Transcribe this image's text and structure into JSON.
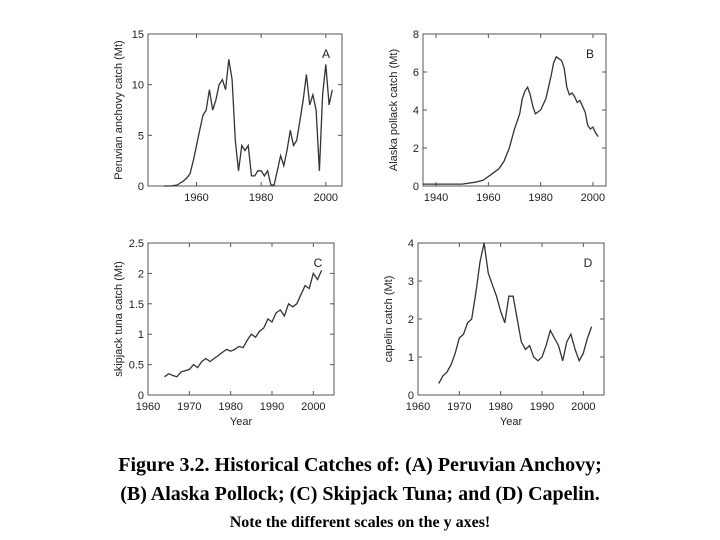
{
  "caption": {
    "line1": "Figure 3.2. Historical Catches of:  (A) Peruvian Anchovy;",
    "line2": "(B) Alaska Pollock; (C) Skipjack Tuna; and (D) Capelin.",
    "line3": "Note the different scales on the y axes!"
  },
  "colors": {
    "line": "#333333",
    "axis": "#555555",
    "text": "#222222"
  },
  "chart_data": [
    {
      "type": "line",
      "panel_label": "A",
      "ylabel": "Peruvian anchovy catch (Mt)",
      "xlabel": "",
      "xlim": [
        1945,
        2005
      ],
      "ylim": [
        0,
        15
      ],
      "xticks": [
        1960,
        1980,
        2000
      ],
      "yticks": [
        0,
        5,
        10,
        15
      ],
      "x": [
        1950,
        1952,
        1954,
        1955,
        1956,
        1957,
        1958,
        1959,
        1960,
        1961,
        1962,
        1963,
        1964,
        1965,
        1966,
        1967,
        1968,
        1969,
        1970,
        1971,
        1972,
        1973,
        1974,
        1975,
        1976,
        1977,
        1978,
        1979,
        1980,
        1981,
        1982,
        1983,
        1984,
        1985,
        1986,
        1987,
        1988,
        1989,
        1990,
        1991,
        1992,
        1993,
        1994,
        1995,
        1996,
        1997,
        1998,
        1999,
        2000,
        2001,
        2002
      ],
      "y": [
        0,
        0,
        0.1,
        0.3,
        0.5,
        0.8,
        1.2,
        2.5,
        4,
        5.5,
        7,
        7.5,
        9.5,
        7.5,
        8.5,
        10,
        10.5,
        9.5,
        12.5,
        10.5,
        4.5,
        1.5,
        4,
        3.5,
        4,
        1,
        1,
        1.5,
        1.5,
        1,
        1.5,
        0.1,
        0.1,
        1.5,
        3,
        2,
        3.5,
        5.5,
        4,
        4.5,
        6.5,
        8.5,
        11,
        8,
        9,
        7.5,
        1.5,
        9,
        12,
        8,
        9.5
      ]
    },
    {
      "type": "line",
      "panel_label": "B",
      "ylabel": "Alaska pollack catch (Mt)",
      "xlabel": "",
      "xlim": [
        1935,
        2005
      ],
      "ylim": [
        0,
        8
      ],
      "xticks": [
        1940,
        1960,
        1980,
        2000
      ],
      "yticks": [
        0,
        2,
        4,
        6,
        8
      ],
      "x": [
        1935,
        1940,
        1945,
        1950,
        1955,
        1958,
        1960,
        1962,
        1964,
        1966,
        1968,
        1970,
        1972,
        1973,
        1974,
        1975,
        1976,
        1977,
        1978,
        1980,
        1981,
        1982,
        1983,
        1984,
        1985,
        1986,
        1987,
        1988,
        1989,
        1990,
        1991,
        1992,
        1993,
        1994,
        1995,
        1996,
        1997,
        1998,
        1999,
        2000,
        2001,
        2002
      ],
      "y": [
        0.1,
        0.1,
        0.1,
        0.1,
        0.2,
        0.3,
        0.5,
        0.7,
        0.9,
        1.3,
        2,
        3,
        3.8,
        4.6,
        5,
        5.2,
        4.8,
        4.2,
        3.8,
        4,
        4.3,
        4.6,
        5.2,
        5.8,
        6.5,
        6.8,
        6.7,
        6.6,
        6.2,
        5.2,
        4.8,
        4.9,
        4.7,
        4.4,
        4.5,
        4.2,
        3.9,
        3.2,
        3,
        3.1,
        2.8,
        2.6
      ]
    },
    {
      "type": "line",
      "panel_label": "C",
      "ylabel": "skipjack tuna catch (Mt)",
      "xlabel": "Year",
      "xlim": [
        1960,
        2005
      ],
      "ylim": [
        0,
        2.5
      ],
      "xticks": [
        1960,
        1970,
        1980,
        1990,
        2000
      ],
      "yticks": [
        0,
        0.5,
        1,
        1.5,
        2,
        2.5
      ],
      "x": [
        1964,
        1965,
        1966,
        1967,
        1968,
        1969,
        1970,
        1971,
        1972,
        1973,
        1974,
        1975,
        1976,
        1977,
        1978,
        1979,
        1980,
        1981,
        1982,
        1983,
        1984,
        1985,
        1986,
        1987,
        1988,
        1989,
        1990,
        1991,
        1992,
        1993,
        1994,
        1995,
        1996,
        1997,
        1998,
        1999,
        2000,
        2001,
        2002
      ],
      "y": [
        0.3,
        0.35,
        0.32,
        0.3,
        0.38,
        0.4,
        0.42,
        0.5,
        0.45,
        0.55,
        0.6,
        0.55,
        0.6,
        0.65,
        0.7,
        0.75,
        0.72,
        0.75,
        0.8,
        0.78,
        0.9,
        1.0,
        0.95,
        1.05,
        1.1,
        1.25,
        1.2,
        1.35,
        1.4,
        1.3,
        1.5,
        1.45,
        1.5,
        1.65,
        1.8,
        1.75,
        2.0,
        1.9,
        2.05
      ]
    },
    {
      "type": "line",
      "panel_label": "D",
      "ylabel": "capelin catch (Mt)",
      "xlabel": "Year",
      "xlim": [
        1960,
        2005
      ],
      "ylim": [
        0,
        4
      ],
      "xticks": [
        1960,
        1970,
        1980,
        1990,
        2000
      ],
      "yticks": [
        0,
        1,
        2,
        3,
        4
      ],
      "x": [
        1965,
        1966,
        1967,
        1968,
        1969,
        1970,
        1971,
        1972,
        1973,
        1974,
        1975,
        1976,
        1977,
        1978,
        1979,
        1980,
        1981,
        1982,
        1983,
        1984,
        1985,
        1986,
        1987,
        1988,
        1989,
        1990,
        1991,
        1992,
        1993,
        1994,
        1995,
        1996,
        1997,
        1998,
        1999,
        2000,
        2001,
        2002
      ],
      "y": [
        0.3,
        0.5,
        0.6,
        0.8,
        1.1,
        1.5,
        1.6,
        1.9,
        2.0,
        2.7,
        3.5,
        4.0,
        3.2,
        2.9,
        2.6,
        2.2,
        1.9,
        2.6,
        2.6,
        2.0,
        1.4,
        1.2,
        1.3,
        1.0,
        0.9,
        1.0,
        1.3,
        1.7,
        1.5,
        1.3,
        0.9,
        1.4,
        1.6,
        1.2,
        0.9,
        1.1,
        1.5,
        1.8
      ]
    }
  ]
}
